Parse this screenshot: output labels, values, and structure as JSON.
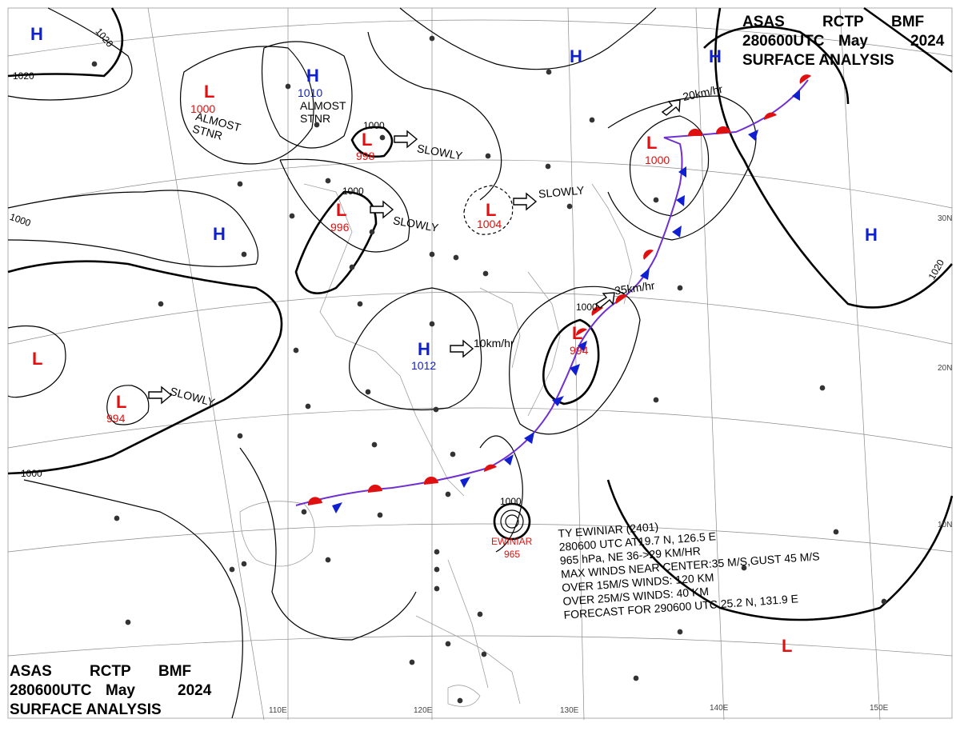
{
  "header": {
    "line1": [
      "ASAS",
      "RCTP",
      "BMF"
    ],
    "line2": [
      "280600UTC",
      "May",
      "2024"
    ],
    "line3": "SURFACE ANALYSIS"
  },
  "pressure_centers": [
    {
      "type": "H",
      "value": ""
    },
    {
      "type": "L",
      "value": "1000"
    },
    {
      "type": "H",
      "value": "1010"
    },
    {
      "type": "L",
      "value": "998"
    },
    {
      "type": "L",
      "value": "996"
    },
    {
      "type": "L",
      "value": "1004"
    },
    {
      "type": "H",
      "value": ""
    },
    {
      "type": "H",
      "value": "1012"
    },
    {
      "type": "L",
      "value": "994"
    },
    {
      "type": "L",
      "value": "994"
    },
    {
      "type": "L",
      "value": ""
    },
    {
      "type": "H",
      "value": ""
    },
    {
      "type": "H",
      "value": ""
    },
    {
      "type": "L",
      "value": "1000"
    },
    {
      "type": "H",
      "value": ""
    },
    {
      "type": "L",
      "value": ""
    }
  ],
  "movements": [
    "ALMOST\nSTNR",
    "ALMOST\nSTNR",
    "SLOWLY",
    "SLOWLY",
    "SLOWLY",
    "10km/hr",
    "SLOWLY",
    "35km/hr",
    "20km/hr"
  ],
  "isobar_labels": [
    "1020",
    "1020",
    "1000",
    "1000",
    "1000",
    "1000",
    "1000",
    "1020",
    "1000"
  ],
  "longitude_labels": [
    "110E",
    "120E",
    "130E",
    "140E",
    "150E"
  ],
  "latitude_labels": [
    "30N",
    "20N",
    "10N"
  ],
  "typhoon": {
    "name": "EWINIAR",
    "pressure": "965",
    "lines": [
      "TY  EWINIAR  (2401)",
      "280600 UTC  AT19.7 N, 126.5 E",
      "965 hPa, NE  36->29 KM/HR",
      "MAX WINDS NEAR CENTER:35 M/S,GUST 45 M/S",
      "OVER 15M/S WINDS: 120 KM",
      "OVER 25M/S WINDS: 40 KM",
      "FORECAST FOR 290600 UTC 25.2 N, 131.9 E"
    ]
  },
  "colors": {
    "high": "#1020d0",
    "low": "#e01010",
    "front_cold": "#1020d0",
    "front_warm": "#e01010"
  }
}
